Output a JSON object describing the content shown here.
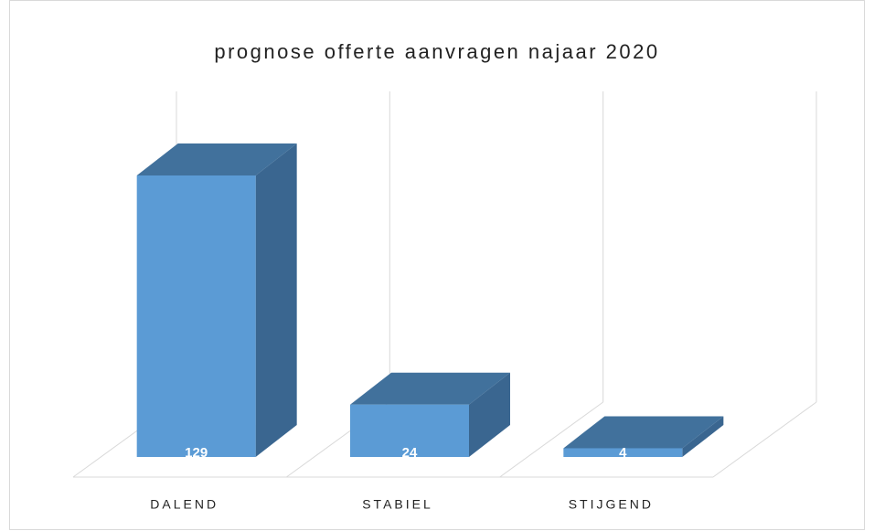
{
  "chart_data": {
    "type": "bar3d",
    "title": "prognose offerte aanvragen najaar 2020",
    "categories": [
      "DALEND",
      "STABIEL",
      "STIJGEND"
    ],
    "values": [
      129,
      24,
      4
    ],
    "color": "#5b9bd5"
  }
}
